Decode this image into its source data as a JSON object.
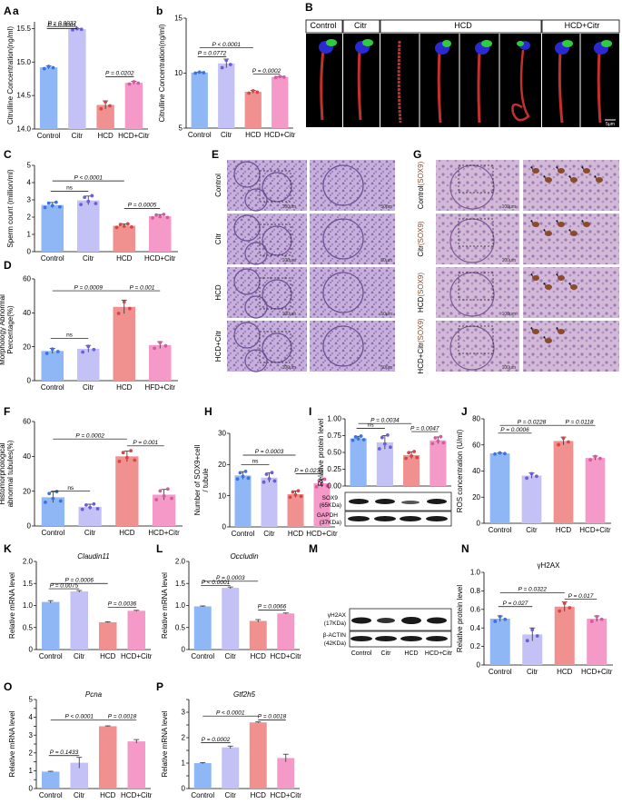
{
  "colors": {
    "control": "#8fb6f5",
    "citr": "#c4c1f6",
    "hcd": "#f0908f",
    "hcdcitr": "#f59ac8",
    "tissue": "#b89bd0",
    "ihc": "#c9a8cf",
    "microscopy_bg": "#050505",
    "sperm_red": "#c23030",
    "sperm_blue": "#2a2ad0",
    "sperm_green": "#2ecc40"
  },
  "panel_labels": {
    "A": "A",
    "a": "a",
    "b": "b",
    "B": "B",
    "C": "C",
    "D": "D",
    "E": "E",
    "G": "G",
    "F": "F",
    "H": "H",
    "I": "I",
    "J": "J",
    "K": "K",
    "L": "L",
    "M": "M",
    "N": "N",
    "O": "O",
    "P": "P"
  },
  "groups_B": {
    "control": "Control",
    "citr": "Citr",
    "hcd": "HCD",
    "hcdcitr": "HCD+Citr",
    "scale": "5μm"
  },
  "rows_E": [
    "Control",
    "Citr",
    "HCD",
    "HCD+Citr"
  ],
  "rows_G": [
    {
      "g": "Control",
      "m": "(SOX9)"
    },
    {
      "g": "Citr",
      "m": "(SOX9)"
    },
    {
      "g": "HCD",
      "m": "(SOX9)"
    },
    {
      "g": "HCD+Citr",
      "m": "(SOX9)"
    }
  ],
  "scale_E": {
    "left": "100μm",
    "right": "50μm"
  },
  "scale_G": {
    "left": "100μm",
    "right": "50μm"
  },
  "blot_I": {
    "sox9": "SOX9",
    "sox9_kda": "(65KDa)",
    "gapdh": "GAPDH",
    "gapdh_kda": "(37KDa)"
  },
  "blot_M": {
    "h2ax": "γH2AX",
    "h2ax_kda": "(17KDa)",
    "actin": "β-ACTIN",
    "actin_kda": "(42KDa)",
    "lanes": [
      "Control",
      "Citr",
      "HCD",
      "HCD+Citr"
    ]
  },
  "chart_data": [
    {
      "id": "a",
      "type": "bar",
      "categories": [
        "Control",
        "Citr",
        "HCD",
        "HCD+Citr"
      ],
      "values": [
        14.92,
        15.49,
        14.36,
        14.69
      ],
      "errors": [
        0.02,
        0.01,
        0.06,
        0.02
      ],
      "ylabel": "Citrulline Concentration(ng/ml)",
      "ylim": [
        14.0,
        15.6
      ],
      "yticks": [
        14.0,
        14.5,
        15.0,
        15.5
      ],
      "ytick_labels": [
        "14.0",
        "14.5",
        "15.0",
        "15.5"
      ],
      "tick_labels": [
        "Control",
        "Citr",
        "HCD",
        "HCD+Citr"
      ],
      "comparisons": [
        {
          "text": "P = 0.0032",
          "from": 0,
          "to": 1,
          "at": 15.53
        },
        {
          "text": "P < 0.0001",
          "from": 0,
          "to": 1,
          "at": 15.5
        },
        {
          "text": "P = 0.0202",
          "from": 2,
          "to": 3,
          "at": 14.78
        }
      ]
    },
    {
      "id": "b",
      "type": "bar",
      "categories": [
        "Control",
        "Citr",
        "HCD",
        "HCD+Citr"
      ],
      "values": [
        10.05,
        10.88,
        8.3,
        9.65
      ],
      "errors": [
        0.05,
        0.4,
        0.12,
        0.05
      ],
      "ylabel": "Citrulline Concentration(ng/ml)",
      "ylim": [
        5,
        15
      ],
      "yticks": [
        5,
        10,
        15
      ],
      "ytick_labels": [
        "5",
        "10",
        "15"
      ],
      "tick_labels": [
        "Control",
        "Citr",
        "HCD",
        "HCD+Citr"
      ],
      "comparisons": [
        {
          "text": "P < 0.0001",
          "from": 0,
          "to": 2,
          "at": 12.3
        },
        {
          "text": "P = 0.0772",
          "from": 0,
          "to": 1,
          "at": 11.5
        },
        {
          "text": "P = 0.0002",
          "from": 2,
          "to": 3,
          "at": 9.9
        }
      ]
    },
    {
      "id": "C",
      "type": "bar",
      "categories": [
        "Control",
        "Citr",
        "HCD",
        "HCD+Citr"
      ],
      "values": [
        2.7,
        2.97,
        1.5,
        2.05
      ],
      "errors": [
        0.15,
        0.25,
        0.1,
        0.1
      ],
      "ylabel": "Sperm count (million/ml)",
      "ylim": [
        0,
        5
      ],
      "yticks": [
        0,
        1,
        2,
        3,
        4,
        5
      ],
      "ytick_labels": [
        "0",
        "1",
        "2",
        "3",
        "4",
        "5"
      ],
      "tick_labels": [
        "Control",
        "Citr",
        "HCD",
        "HCD+Citr"
      ],
      "comparisons": [
        {
          "text": "P < 0.0001",
          "from": 0,
          "to": 2,
          "at": 4.1
        },
        {
          "text": "ns",
          "from": 0,
          "to": 1,
          "at": 3.5
        },
        {
          "text": "P = 0.0005",
          "from": 2,
          "to": 3,
          "at": 2.5
        }
      ]
    },
    {
      "id": "D",
      "type": "bar",
      "categories": [
        "Control",
        "Citr",
        "HCD",
        "HFD+Citr"
      ],
      "values": [
        17.5,
        18.8,
        43.5,
        21
      ],
      "errors": [
        1.5,
        2,
        4,
        2
      ],
      "ylabel": "Morphology Abnormal Percentage(%)",
      "ylim": [
        0,
        60
      ],
      "yticks": [
        0,
        20,
        40,
        60
      ],
      "ytick_labels": [
        "0",
        "20",
        "40",
        "60"
      ],
      "tick_labels": [
        "Control",
        "Citr",
        "HCD",
        "HFD+Citr"
      ],
      "comparisons": [
        {
          "text": "P = 0.0009",
          "from": 0,
          "to": 2,
          "at": 53
        },
        {
          "text": "P = 0.001",
          "from": 2,
          "to": 3,
          "at": 53
        },
        {
          "text": "ns",
          "from": 0,
          "to": 1,
          "at": 25
        }
      ]
    },
    {
      "id": "F",
      "type": "bar",
      "categories": [
        "Control",
        "Citr",
        "HCD",
        "HCD+Citr"
      ],
      "values": [
        16.5,
        11,
        40,
        18
      ],
      "errors": [
        3,
        1.5,
        3,
        3
      ],
      "ylabel": "Histomorphological abnormal tubules(%)",
      "ylim": [
        0,
        60
      ],
      "yticks": [
        0,
        20,
        40,
        60
      ],
      "ytick_labels": [
        "0",
        "20",
        "40",
        "60"
      ],
      "tick_labels": [
        "Control",
        "Citr",
        "HCD",
        "HCD+Citr"
      ],
      "comparisons": [
        {
          "text": "P = 0.0002",
          "from": 0,
          "to": 2,
          "at": 50
        },
        {
          "text": "P = 0.001",
          "from": 2,
          "to": 3,
          "at": 46
        },
        {
          "text": "ns",
          "from": 0,
          "to": 1,
          "at": 20
        }
      ]
    },
    {
      "id": "H",
      "type": "bar",
      "categories": [
        "Control",
        "Citr",
        "HCD",
        "HCD+Citr"
      ],
      "values": [
        16.5,
        15.8,
        10.5,
        14
      ],
      "errors": [
        1.2,
        1.5,
        1.0,
        1.2
      ],
      "ylabel": "Number of SOX9+cell / tubule",
      "ylim": [
        0,
        30
      ],
      "yticks": [
        0,
        10,
        20,
        30
      ],
      "ytick_labels": [
        "0",
        "10",
        "20",
        "30"
      ],
      "tick_labels": [
        "Control",
        "Citr",
        "HCD",
        "HCD+Citr"
      ],
      "comparisons": [
        {
          "text": "P = 0.0003",
          "from": 0,
          "to": 2,
          "at": 23
        },
        {
          "text": "ns",
          "from": 0,
          "to": 1,
          "at": 20
        },
        {
          "text": "P = 0.0235",
          "from": 2,
          "to": 3,
          "at": 17
        }
      ]
    },
    {
      "id": "I",
      "type": "bar",
      "categories": [
        "Control",
        "Citr",
        "HCD",
        "HCD+Citr"
      ],
      "values": [
        0.71,
        0.65,
        0.46,
        0.68
      ],
      "errors": [
        0.03,
        0.1,
        0.05,
        0.05
      ],
      "ylabel": "Relative protein level",
      "ylim": [
        0,
        1.0
      ],
      "yticks": [
        0,
        0.25,
        0.5,
        0.75,
        1.0
      ],
      "ytick_labels": [
        "0.00",
        "0.25",
        "0.50",
        "0.75",
        "1.00"
      ],
      "tick_labels": [
        "Control",
        "Citr",
        "HCD",
        "HCD+Citr"
      ],
      "comparisons": [
        {
          "text": "P = 0.0034",
          "from": 0,
          "to": 2,
          "at": 0.93
        },
        {
          "text": "ns",
          "from": 0,
          "to": 1,
          "at": 0.86
        },
        {
          "text": "P = 0.0047",
          "from": 2,
          "to": 3,
          "at": 0.81
        }
      ]
    },
    {
      "id": "J",
      "type": "bar",
      "categories": [
        "Control",
        "Citr",
        "HCD",
        "HCD+Citr"
      ],
      "values": [
        53.5,
        36.5,
        63,
        50
      ],
      "errors": [
        0.5,
        2,
        3,
        1.5
      ],
      "ylabel": "ROS concentration (U/ml)",
      "ylim": [
        0,
        80
      ],
      "yticks": [
        0,
        20,
        40,
        60,
        80
      ],
      "ytick_labels": [
        "0",
        "20",
        "40",
        "60",
        "80"
      ],
      "tick_labels": [
        "Control",
        "Citr",
        "HCD",
        "HCD+Citr"
      ],
      "comparisons": [
        {
          "text": "P = 0.0228",
          "from": 0,
          "to": 2,
          "at": 75
        },
        {
          "text": "P = 0.0006",
          "from": 0,
          "to": 1,
          "at": 69
        },
        {
          "text": "P = 0.0118",
          "from": 2,
          "to": 3,
          "at": 75
        }
      ]
    },
    {
      "id": "K",
      "type": "bar",
      "gene": "Claudin11",
      "categories": [
        "Control",
        "Citr",
        "HCD",
        "HCD+Citr"
      ],
      "values": [
        1.08,
        1.32,
        0.62,
        0.88
      ],
      "errors": [
        0.03,
        0.02,
        0.01,
        0.01
      ],
      "ylabel": "Relative mRNA level",
      "ylim": [
        0,
        2.0
      ],
      "yticks": [
        0,
        0.5,
        1.0,
        1.5,
        2.0
      ],
      "ytick_labels": [
        "0",
        "0.5",
        "1.0",
        "1.5",
        "2.0"
      ],
      "tick_labels": [
        "Control",
        "Citr",
        "HCD",
        "HCD+Citr"
      ],
      "comparisons": [
        {
          "text": "P = 0.0006",
          "from": 0,
          "to": 2,
          "at": 1.5
        },
        {
          "text": "P = 0.0075",
          "from": 0,
          "to": 1,
          "at": 1.38
        },
        {
          "text": "P = 0.0036",
          "from": 2,
          "to": 3,
          "at": 0.96
        }
      ]
    },
    {
      "id": "L",
      "type": "bar",
      "gene": "Occludin",
      "categories": [
        "Control",
        "Citr",
        "HCD",
        "HCD+Citr"
      ],
      "values": [
        0.98,
        1.4,
        0.65,
        0.82
      ],
      "errors": [
        0.01,
        0.02,
        0.03,
        0.01
      ],
      "ylabel": "Relative mRNA level",
      "ylim": [
        0,
        2.0
      ],
      "yticks": [
        0,
        0.5,
        1.0,
        1.5,
        2.0
      ],
      "ytick_labels": [
        "0",
        "0.5",
        "1.0",
        "1.5",
        "2.0"
      ],
      "tick_labels": [
        "Control",
        "Citr",
        "HCD",
        "HCD+Citr"
      ],
      "comparisons": [
        {
          "text": "P = 0.0003",
          "from": 0,
          "to": 2,
          "at": 1.55
        },
        {
          "text": "P < 0.0001",
          "from": 0,
          "to": 1,
          "at": 1.45
        },
        {
          "text": "P = 0.0066",
          "from": 2,
          "to": 3,
          "at": 0.9
        }
      ]
    },
    {
      "id": "N",
      "type": "bar",
      "title": "γH2AX",
      "categories": [
        "Control",
        "Citr",
        "HCD",
        "HCD+Citr"
      ],
      "values": [
        0.5,
        0.33,
        0.63,
        0.5
      ],
      "errors": [
        0.03,
        0.07,
        0.05,
        0.03
      ],
      "ylabel": "Relative protein level",
      "ylim": [
        0,
        1.0
      ],
      "yticks": [
        0,
        0.2,
        0.4,
        0.6,
        0.8,
        1.0
      ],
      "ytick_labels": [
        "0",
        "0.2",
        "0.4",
        "0.6",
        "0.8",
        "1.0"
      ],
      "tick_labels": [
        "Control",
        "Citr",
        "HCD",
        "HCD+Citr"
      ],
      "comparisons": [
        {
          "text": "P = 0.0322",
          "from": 0,
          "to": 2,
          "at": 0.78
        },
        {
          "text": "P = 0.027",
          "from": 0,
          "to": 1,
          "at": 0.63
        },
        {
          "text": "P = 0.017",
          "from": 2,
          "to": 3,
          "at": 0.71
        }
      ]
    },
    {
      "id": "O",
      "type": "bar",
      "gene": "Pcna",
      "categories": [
        "Control",
        "Citr",
        "HCD",
        "HCD+Citr"
      ],
      "values": [
        0.95,
        1.45,
        3.5,
        2.65
      ],
      "errors": [
        0.02,
        0.3,
        0.02,
        0.1
      ],
      "ylabel": "Relative mRNA level",
      "ylim": [
        0,
        5
      ],
      "yticks": [
        0,
        0.5,
        1,
        1.5,
        2,
        2.5,
        3,
        3.5,
        4,
        4.5,
        5
      ],
      "ytick_labels": [
        "0",
        "",
        "1",
        "",
        "2",
        "",
        "3",
        "",
        "4",
        "",
        "5"
      ],
      "tick_labels": [
        "Control",
        "Citr",
        "HCD",
        "HCD+Citr"
      ],
      "comparisons": [
        {
          "text": "P < 0.0001",
          "from": 0,
          "to": 2,
          "at": 3.85
        },
        {
          "text": "P = 0.1433",
          "from": 0,
          "to": 1,
          "at": 1.85
        },
        {
          "text": "P = 0.0018",
          "from": 2,
          "to": 3,
          "at": 3.85
        }
      ]
    },
    {
      "id": "P",
      "type": "bar",
      "gene": "Gtf2h5",
      "categories": [
        "Control",
        "Citr",
        "HCD",
        "HCD+Citr"
      ],
      "values": [
        1.0,
        1.62,
        2.6,
        1.2
      ],
      "errors": [
        0.02,
        0.05,
        0.02,
        0.15
      ],
      "ylabel": "Relative mRNA level",
      "ylim": [
        0,
        3.5
      ],
      "yticks": [
        0,
        0.5,
        1,
        1.5,
        2,
        2.5,
        3,
        3.5
      ],
      "ytick_labels": [
        "0",
        "",
        "1",
        "",
        "2",
        "",
        "3",
        ""
      ],
      "tick_labels": [
        "Control",
        "Citr",
        "HCD",
        "HCD+Citr"
      ],
      "comparisons": [
        {
          "text": "P < 0.0001",
          "from": 0,
          "to": 2,
          "at": 2.85
        },
        {
          "text": "P = 0.0002",
          "from": 0,
          "to": 1,
          "at": 1.8
        },
        {
          "text": "P = 0.0018",
          "from": 2,
          "to": 3,
          "at": 2.7
        }
      ]
    }
  ]
}
